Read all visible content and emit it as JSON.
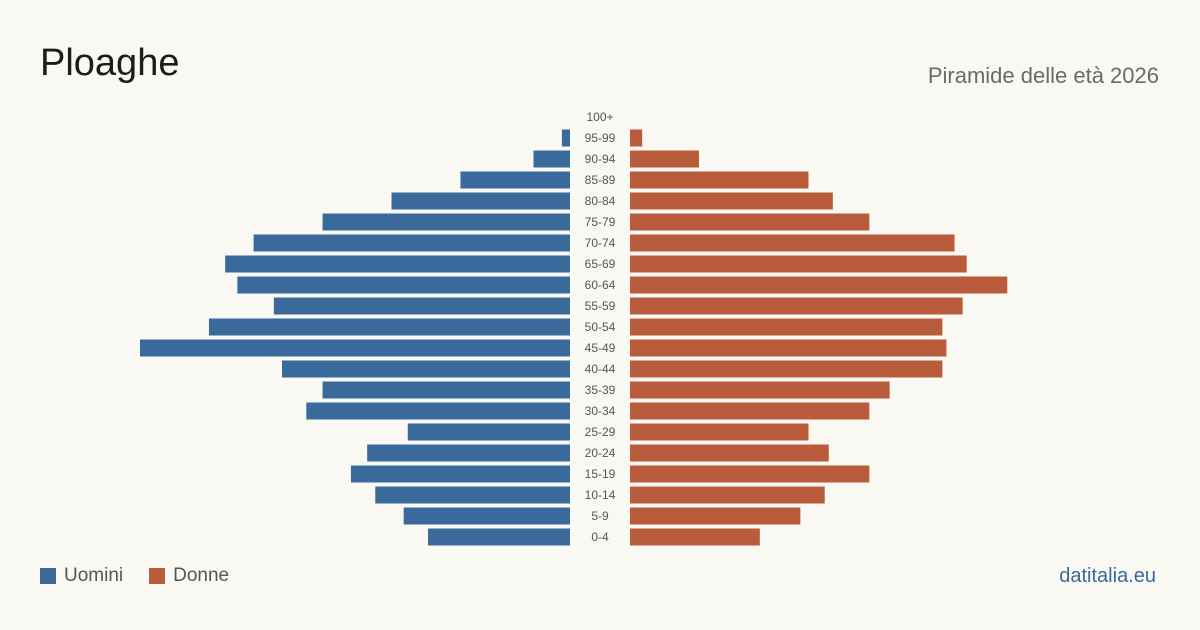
{
  "header": {
    "title": "Ploaghe",
    "subtitle": "Piramide delle età 2026"
  },
  "legend": {
    "men_label": "Uomini",
    "women_label": "Donne"
  },
  "footer": {
    "brand": "datitalia.eu"
  },
  "colors": {
    "men": "#3a6a9c",
    "women": "#b85c3c",
    "age_label": "#555555"
  },
  "chart_data": {
    "type": "bar",
    "orientation": "horizontal-pyramid",
    "categories": [
      "100+",
      "95-99",
      "90-94",
      "85-89",
      "80-84",
      "75-79",
      "70-74",
      "65-69",
      "60-64",
      "55-59",
      "50-54",
      "45-49",
      "40-44",
      "35-39",
      "30-34",
      "25-29",
      "20-24",
      "15-19",
      "10-14",
      "5-9",
      "0-4"
    ],
    "series": [
      {
        "name": "Uomini",
        "values": [
          0,
          2,
          9,
          27,
          44,
          61,
          78,
          85,
          82,
          73,
          89,
          106,
          71,
          61,
          65,
          40,
          50,
          54,
          48,
          41,
          35
        ]
      },
      {
        "name": "Donne",
        "values": [
          0,
          3,
          17,
          44,
          50,
          59,
          80,
          83,
          93,
          82,
          77,
          78,
          77,
          64,
          59,
          44,
          49,
          59,
          48,
          42,
          32
        ]
      }
    ],
    "grid": false,
    "legend_position": "bottom-left"
  }
}
